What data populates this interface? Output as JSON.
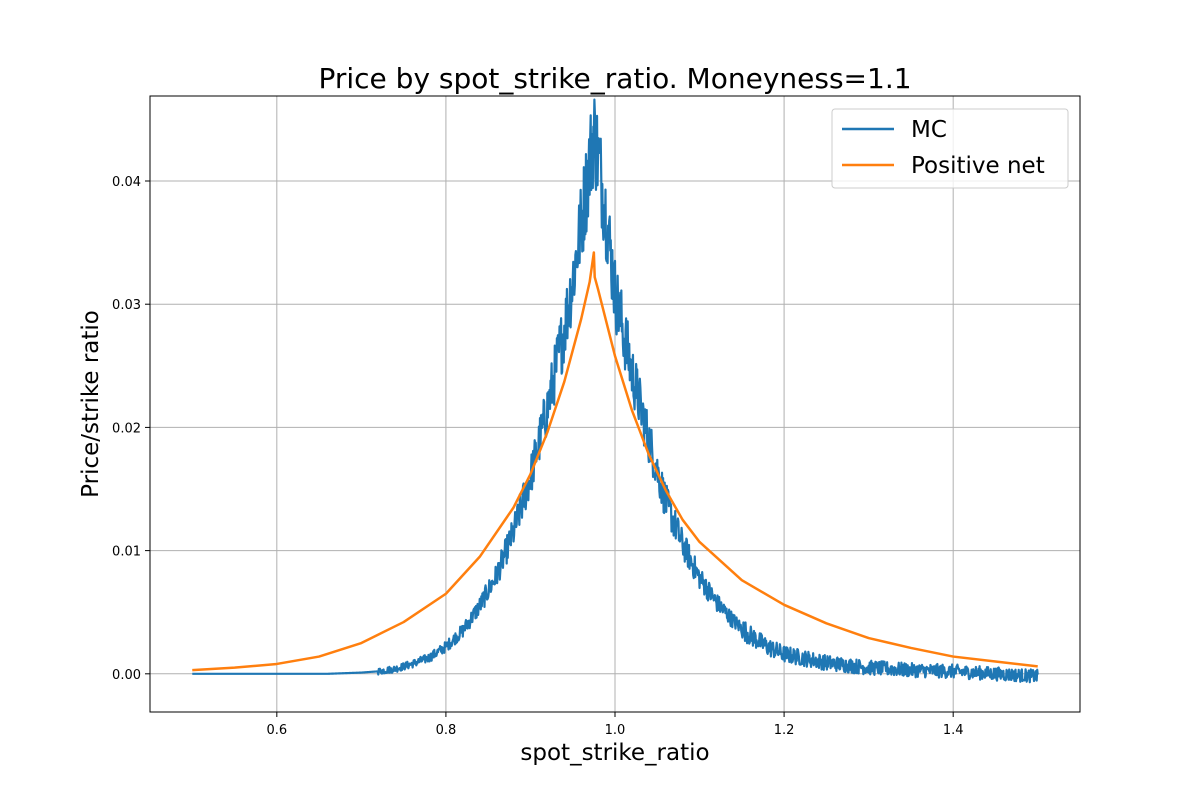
{
  "chart_data": {
    "type": "line",
    "title": "Price by spot_strike_ratio. Moneyness=1.1",
    "xlabel": "spot_strike_ratio",
    "ylabel": "Price/strike ratio",
    "xlim": [
      0.45,
      1.55
    ],
    "ylim": [
      -0.0031,
      0.0469
    ],
    "xticks": [
      0.6,
      0.8,
      1.0,
      1.2,
      1.4
    ],
    "xtick_labels": [
      "0.6",
      "0.8",
      "1.0",
      "1.2",
      "1.4"
    ],
    "yticks": [
      0.0,
      0.01,
      0.02,
      0.03,
      0.04
    ],
    "ytick_labels": [
      "0.00",
      "0.01",
      "0.02",
      "0.03",
      "0.04"
    ],
    "grid": true,
    "legend_position": "top-right",
    "series": [
      {
        "name": "MC",
        "color": "#1f77b4",
        "noisy": true,
        "x": [
          0.5,
          0.6,
          0.66,
          0.7,
          0.72,
          0.74,
          0.76,
          0.78,
          0.8,
          0.82,
          0.84,
          0.86,
          0.88,
          0.9,
          0.92,
          0.94,
          0.95,
          0.96,
          0.97,
          0.975,
          0.98,
          0.99,
          1.0,
          1.02,
          1.04,
          1.06,
          1.08,
          1.1,
          1.12,
          1.14,
          1.16,
          1.18,
          1.2,
          1.25,
          1.3,
          1.35,
          1.4,
          1.45,
          1.5
        ],
        "y": [
          0.0,
          0.0,
          0.0,
          0.0001,
          0.0002,
          0.0004,
          0.0008,
          0.0013,
          0.0022,
          0.0035,
          0.0055,
          0.008,
          0.0115,
          0.016,
          0.0215,
          0.028,
          0.032,
          0.0365,
          0.0415,
          0.044,
          0.042,
          0.037,
          0.031,
          0.0245,
          0.019,
          0.014,
          0.0105,
          0.0078,
          0.0058,
          0.0043,
          0.0031,
          0.0022,
          0.0016,
          0.0009,
          0.0005,
          0.0003,
          0.0002,
          0.0,
          -0.0002
        ]
      },
      {
        "name": "Positive net",
        "color": "#ff7f0e",
        "noisy": false,
        "x": [
          0.5,
          0.55,
          0.6,
          0.65,
          0.7,
          0.75,
          0.8,
          0.84,
          0.88,
          0.9,
          0.92,
          0.94,
          0.96,
          0.97,
          0.975,
          0.976,
          0.98,
          1.0,
          1.02,
          1.04,
          1.06,
          1.08,
          1.1,
          1.15,
          1.2,
          1.25,
          1.3,
          1.35,
          1.4,
          1.45,
          1.5
        ],
        "y": [
          0.0003,
          0.0005,
          0.0008,
          0.0014,
          0.0025,
          0.0042,
          0.0065,
          0.0095,
          0.0135,
          0.0162,
          0.0196,
          0.0237,
          0.0288,
          0.0318,
          0.0342,
          0.0322,
          0.0312,
          0.0258,
          0.0214,
          0.0178,
          0.0149,
          0.0125,
          0.0107,
          0.0076,
          0.0056,
          0.0041,
          0.0029,
          0.0021,
          0.0014,
          0.001,
          0.0006
        ]
      }
    ]
  }
}
